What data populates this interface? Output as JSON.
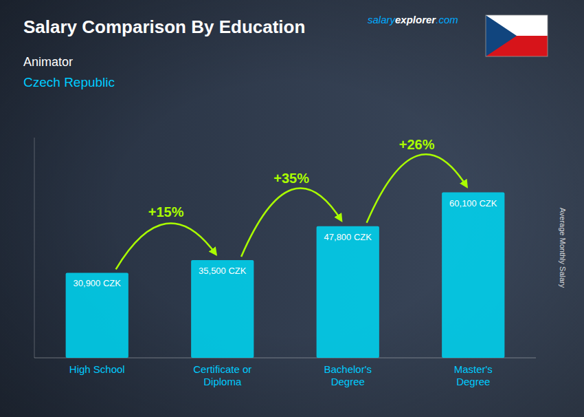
{
  "chart_data": {
    "type": "bar",
    "title": "Salary Comparison By Education",
    "subtitle": [
      "Animator",
      "Czech Republic"
    ],
    "brand": [
      "salary",
      "explorer",
      ".com"
    ],
    "ylabel": "Average Monthly Salary",
    "categories": [
      "High School",
      "Certificate or\nDiploma",
      "Bachelor's\nDegree",
      "Master's\nDegree"
    ],
    "values": [
      30900,
      35500,
      47800,
      60100
    ],
    "value_labels": [
      "30,900 CZK",
      "35,500 CZK",
      "47,800 CZK",
      "60,100 CZK"
    ],
    "data_labels": true,
    "color": "#00d4f0",
    "annotations": [
      {
        "from": 0,
        "to": 1,
        "value": 15,
        "label": "+15%",
        "color": "#aaff00"
      },
      {
        "from": 1,
        "to": 2,
        "value": 35,
        "label": "+35%",
        "color": "#aaff00"
      },
      {
        "from": 2,
        "to": 3,
        "value": 26,
        "label": "+26%",
        "color": "#aaff00"
      }
    ],
    "ylim": [
      0,
      80000
    ],
    "tick_labels": "x",
    "grid": false
  }
}
